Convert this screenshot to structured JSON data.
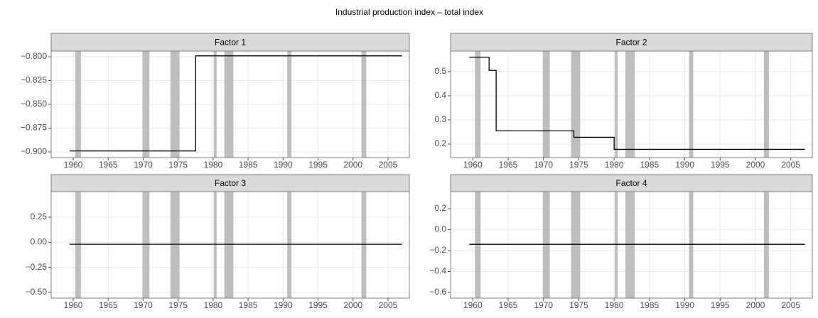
{
  "title": "Industrial production index –  total index",
  "chart_data": [
    {
      "type": "line",
      "title": "Factor 1",
      "x": [
        1959.5,
        1977.5,
        1977.5,
        2007
      ],
      "values": [
        -0.899,
        -0.899,
        -0.799,
        -0.799
      ],
      "color": "#000000",
      "shaded_ranges": [
        [
          1960.3,
          1961.1
        ],
        [
          1969.9,
          1970.9
        ],
        [
          1973.9,
          1975.2
        ],
        [
          1980.1,
          1980.5
        ],
        [
          1981.6,
          1982.9
        ],
        [
          1990.6,
          1991.2
        ],
        [
          2001.2,
          2001.9
        ]
      ],
      "shade_color": "#bebebe",
      "xlim": [
        1956.85,
        2008.05
      ],
      "xticks": [
        1960,
        1965,
        1970,
        1975,
        1980,
        1985,
        1990,
        1995,
        2000,
        2005
      ],
      "ylim": [
        -0.906,
        -0.794
      ],
      "yticks": [
        {
          "value": -0.9,
          "label": "−0.900"
        },
        {
          "value": -0.875,
          "label": "−0.875"
        },
        {
          "value": -0.85,
          "label": "−0.850"
        },
        {
          "value": -0.825,
          "label": "−0.825"
        },
        {
          "value": -0.8,
          "label": "−0.800"
        }
      ],
      "grid": true
    },
    {
      "type": "line",
      "title": "Factor 2",
      "x": [
        1959.5,
        1962.3,
        1962.3,
        1963.3,
        1963.3,
        1974.3,
        1974.3,
        1980,
        1980,
        2007
      ],
      "values": [
        0.56,
        0.56,
        0.505,
        0.505,
        0.255,
        0.255,
        0.228,
        0.228,
        0.178,
        0.178
      ],
      "color": "#000000",
      "shaded_ranges": [
        [
          1960.3,
          1961.1
        ],
        [
          1969.9,
          1970.9
        ],
        [
          1973.9,
          1975.2
        ],
        [
          1980.1,
          1980.5
        ],
        [
          1981.6,
          1982.9
        ],
        [
          1990.6,
          1991.2
        ],
        [
          2001.2,
          2001.9
        ]
      ],
      "shade_color": "#bebebe",
      "xlim": [
        1956.85,
        2008.05
      ],
      "xticks": [
        1960,
        1965,
        1970,
        1975,
        1980,
        1985,
        1990,
        1995,
        2000,
        2005
      ],
      "ylim": [
        0.144,
        0.585
      ],
      "yticks": [
        0.2,
        0.3,
        0.4,
        0.5
      ],
      "grid": true
    },
    {
      "type": "line",
      "title": "Factor 3",
      "x": [
        1959.5,
        2007
      ],
      "values": [
        -0.02,
        -0.02
      ],
      "color": "#000000",
      "shaded_ranges": [
        [
          1960.3,
          1961.1
        ],
        [
          1969.9,
          1970.9
        ],
        [
          1973.9,
          1975.2
        ],
        [
          1980.1,
          1980.5
        ],
        [
          1981.6,
          1982.9
        ],
        [
          1990.6,
          1991.2
        ],
        [
          2001.2,
          2001.9
        ]
      ],
      "shade_color": "#bebebe",
      "xlim": [
        1956.85,
        2008.05
      ],
      "xticks": [
        1960,
        1965,
        1970,
        1975,
        1980,
        1985,
        1990,
        1995,
        2000,
        2005
      ],
      "ylim": [
        -0.557,
        0.505
      ],
      "yticks": [
        {
          "value": -0.5,
          "label": "−0.50"
        },
        {
          "value": -0.25,
          "label": "−0.25"
        },
        {
          "value": 0,
          "label": "0.00"
        },
        {
          "value": 0.25,
          "label": "0.25"
        }
      ],
      "grid": true
    },
    {
      "type": "line",
      "title": "Factor 4",
      "x": [
        1959.5,
        2007
      ],
      "values": [
        -0.14,
        -0.14
      ],
      "color": "#000000",
      "shaded_ranges": [
        [
          1960.3,
          1961.1
        ],
        [
          1969.9,
          1970.9
        ],
        [
          1973.9,
          1975.2
        ],
        [
          1980.1,
          1980.5
        ],
        [
          1981.6,
          1982.9
        ],
        [
          1990.6,
          1991.2
        ],
        [
          2001.2,
          2001.9
        ]
      ],
      "shade_color": "#bebebe",
      "xlim": [
        1956.85,
        2008.05
      ],
      "xticks": [
        1960,
        1965,
        1970,
        1975,
        1980,
        1985,
        1990,
        1995,
        2000,
        2005
      ],
      "ylim": [
        -0.654,
        0.363
      ],
      "yticks": [
        {
          "value": -0.6,
          "label": "−0.6"
        },
        {
          "value": -0.4,
          "label": "−0.4"
        },
        {
          "value": -0.2,
          "label": "−0.2"
        },
        {
          "value": 0,
          "label": "0.0"
        },
        {
          "value": 0.2,
          "label": "0.2"
        }
      ],
      "grid": true
    }
  ]
}
